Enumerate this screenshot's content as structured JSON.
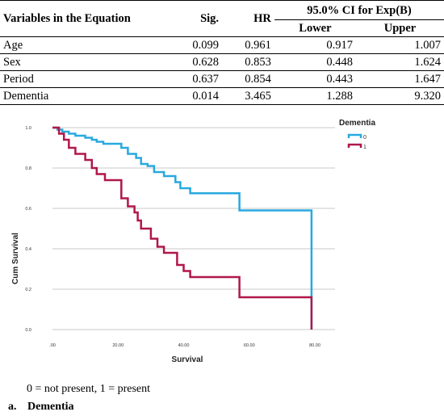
{
  "table": {
    "headers": {
      "variables": "Variables in the Equation",
      "sig": "Sig.",
      "hr": "HR",
      "ci": "95.0% CI for Exp(B)",
      "lower": "Lower",
      "upper": "Upper"
    },
    "rows": [
      {
        "name": "Age",
        "sig": "0.099",
        "hr": "0.961",
        "lower": "0.917",
        "upper": "1.007"
      },
      {
        "name": "Sex",
        "sig": "0.628",
        "hr": "0.853",
        "lower": "0.448",
        "upper": "1.624"
      },
      {
        "name": "Period",
        "sig": "0.637",
        "hr": "0.854",
        "lower": "0.443",
        "upper": "1.647"
      },
      {
        "name": "Dementia",
        "sig": "0.014",
        "hr": "3.465",
        "lower": "1.288",
        "upper": "9.320"
      }
    ]
  },
  "chart_data": {
    "type": "line",
    "xlabel": "Survival",
    "ylabel": "Cum Survival",
    "xlim": [
      0,
      80
    ],
    "ylim": [
      0,
      1
    ],
    "x_ticks": [
      0,
      20,
      40,
      60,
      80
    ],
    "x_tick_labels": [
      ".00",
      "20.00",
      "40.00",
      "60.00",
      "80.00"
    ],
    "y_ticks": [
      0,
      0.2,
      0.4,
      0.6,
      0.8,
      1.0
    ],
    "y_tick_labels": [
      "0.0",
      "0.2",
      "0.4",
      "0.6",
      "0.8",
      "1.0"
    ],
    "grid": "horizontal",
    "legend": {
      "title": "Dementia",
      "placement": "top-right"
    },
    "series": [
      {
        "name": "0",
        "color": "#29a9e0",
        "points": [
          [
            0,
            1.0
          ],
          [
            1.5,
            1.0
          ],
          [
            1.5,
            0.99
          ],
          [
            3,
            0.99
          ],
          [
            3,
            0.98
          ],
          [
            5,
            0.98
          ],
          [
            5,
            0.97
          ],
          [
            7,
            0.97
          ],
          [
            7,
            0.96
          ],
          [
            10,
            0.96
          ],
          [
            10,
            0.95
          ],
          [
            12,
            0.95
          ],
          [
            12,
            0.94
          ],
          [
            13.5,
            0.94
          ],
          [
            13.5,
            0.93
          ],
          [
            15.5,
            0.93
          ],
          [
            15.5,
            0.92
          ],
          [
            21,
            0.92
          ],
          [
            21,
            0.9
          ],
          [
            23,
            0.9
          ],
          [
            23,
            0.87
          ],
          [
            25.5,
            0.87
          ],
          [
            25.5,
            0.85
          ],
          [
            27,
            0.85
          ],
          [
            27,
            0.82
          ],
          [
            29,
            0.82
          ],
          [
            29,
            0.81
          ],
          [
            31,
            0.81
          ],
          [
            31,
            0.78
          ],
          [
            34,
            0.78
          ],
          [
            34,
            0.76
          ],
          [
            37.5,
            0.76
          ],
          [
            37.5,
            0.73
          ],
          [
            39,
            0.73
          ],
          [
            39,
            0.7
          ],
          [
            42,
            0.7
          ],
          [
            42,
            0.675
          ],
          [
            57,
            0.675
          ],
          [
            57,
            0.59
          ],
          [
            79,
            0.59
          ],
          [
            79,
            0.0
          ]
        ]
      },
      {
        "name": "1",
        "color": "#b0174a",
        "points": [
          [
            0,
            1.0
          ],
          [
            2,
            1.0
          ],
          [
            2,
            0.97
          ],
          [
            3.5,
            0.97
          ],
          [
            3.5,
            0.94
          ],
          [
            5,
            0.94
          ],
          [
            5,
            0.9
          ],
          [
            7,
            0.9
          ],
          [
            7,
            0.87
          ],
          [
            10,
            0.87
          ],
          [
            10,
            0.84
          ],
          [
            12,
            0.84
          ],
          [
            12,
            0.8
          ],
          [
            13.5,
            0.8
          ],
          [
            13.5,
            0.77
          ],
          [
            16,
            0.77
          ],
          [
            16,
            0.74
          ],
          [
            21,
            0.74
          ],
          [
            21,
            0.65
          ],
          [
            23,
            0.65
          ],
          [
            23,
            0.61
          ],
          [
            25,
            0.61
          ],
          [
            25,
            0.58
          ],
          [
            26,
            0.58
          ],
          [
            26,
            0.54
          ],
          [
            27,
            0.54
          ],
          [
            27,
            0.5
          ],
          [
            30,
            0.5
          ],
          [
            30,
            0.45
          ],
          [
            32,
            0.45
          ],
          [
            32,
            0.41
          ],
          [
            34,
            0.41
          ],
          [
            34,
            0.38
          ],
          [
            38,
            0.38
          ],
          [
            38,
            0.32
          ],
          [
            40,
            0.32
          ],
          [
            40,
            0.29
          ],
          [
            42,
            0.29
          ],
          [
            42,
            0.26
          ],
          [
            57,
            0.26
          ],
          [
            57,
            0.16
          ],
          [
            79,
            0.16
          ],
          [
            79,
            0.0
          ]
        ]
      }
    ]
  },
  "note": "0 = not present, 1 = present",
  "footnote": {
    "letter": "a.",
    "text": "Dementia"
  }
}
